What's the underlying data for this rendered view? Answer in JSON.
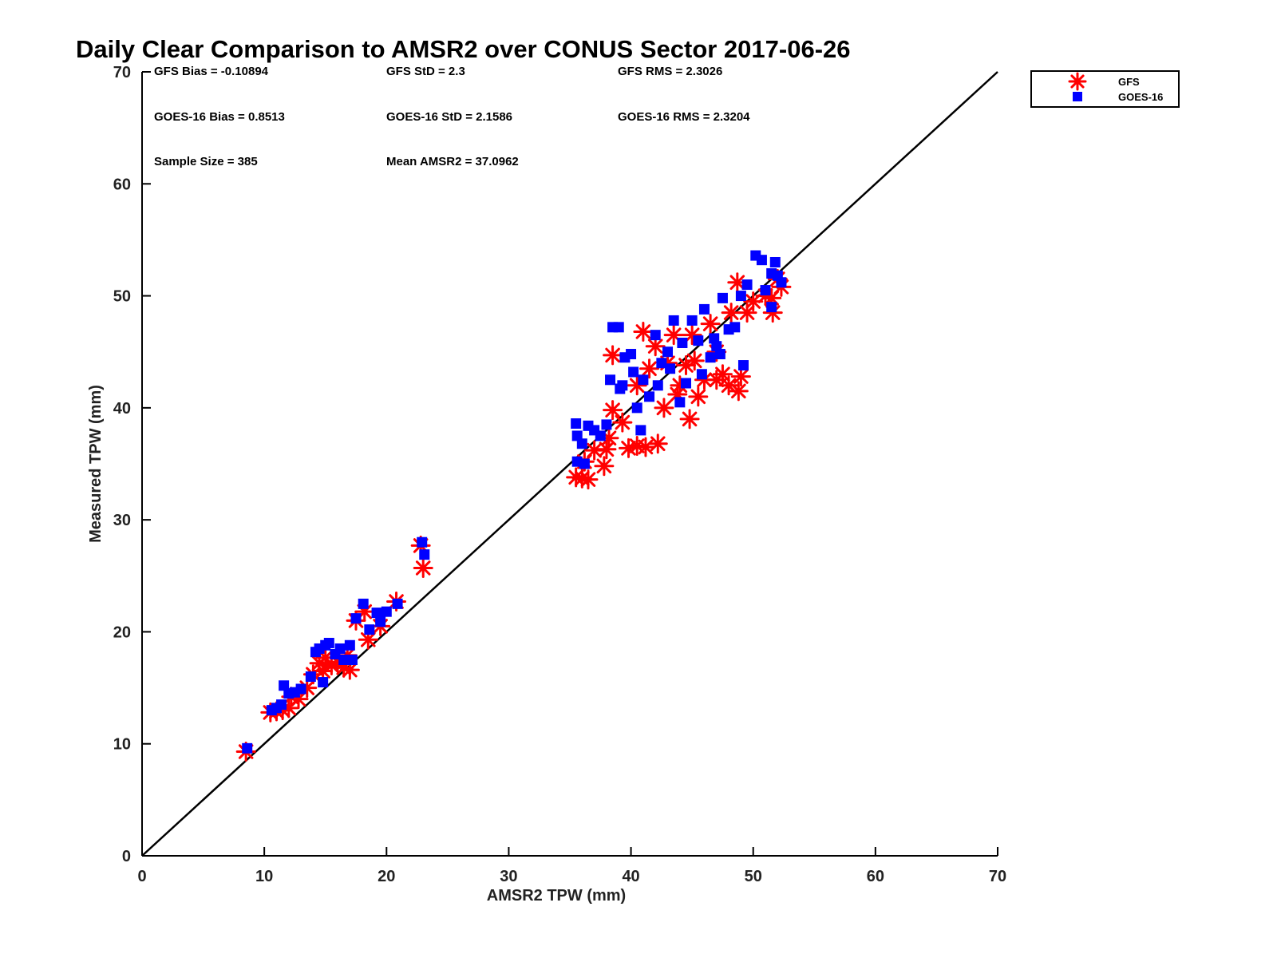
{
  "chart_data": {
    "type": "scatter",
    "title": "Daily Clear Comparison to AMSR2 over CONUS Sector 2017-06-26",
    "xlabel": "AMSR2 TPW (mm)",
    "ylabel": "Measured TPW (mm)",
    "xlim": [
      0,
      70
    ],
    "ylim": [
      0,
      70
    ],
    "xticks": [
      "0",
      "10",
      "20",
      "30",
      "40",
      "50",
      "60",
      "70"
    ],
    "yticks": [
      "0",
      "10",
      "20",
      "30",
      "40",
      "50",
      "60",
      "70"
    ],
    "grid": false,
    "legend_position": "top-right",
    "reference_line": "1:1 diagonal",
    "stats": {
      "gfs_bias": "GFS Bias = -0.10894",
      "gfs_std": "GFS StD = 2.3",
      "gfs_rms": "GFS RMS = 2.3026",
      "goes_bias": "GOES-16 Bias = 0.8513",
      "goes_std": "GOES-16 StD = 2.1586",
      "goes_rms": "GOES-16 RMS = 2.3204",
      "sample_size": "Sample Size = 385",
      "mean_amsr2": "Mean AMSR2 = 37.0962"
    },
    "series": [
      {
        "name": "GFS",
        "color": "#ff0000",
        "marker": "asterisk",
        "points": [
          [
            8.5,
            9.3
          ],
          [
            10.5,
            12.8
          ],
          [
            11.0,
            12.9
          ],
          [
            11.5,
            13.0
          ],
          [
            12.0,
            13.2
          ],
          [
            12.2,
            14.2
          ],
          [
            12.8,
            14.0
          ],
          [
            13.5,
            15.0
          ],
          [
            14.0,
            16.2
          ],
          [
            14.5,
            17.2
          ],
          [
            14.8,
            16.5
          ],
          [
            15.0,
            17.7
          ],
          [
            15.5,
            17.0
          ],
          [
            16.0,
            17.3
          ],
          [
            16.5,
            16.8
          ],
          [
            17.0,
            16.6
          ],
          [
            16.8,
            17.9
          ],
          [
            17.5,
            21.0
          ],
          [
            18.2,
            21.8
          ],
          [
            18.5,
            19.3
          ],
          [
            19.5,
            20.5
          ],
          [
            20.8,
            22.7
          ],
          [
            22.8,
            27.7
          ],
          [
            23.0,
            25.7
          ],
          [
            35.5,
            33.8
          ],
          [
            36.0,
            33.7
          ],
          [
            36.2,
            35.2
          ],
          [
            36.5,
            33.6
          ],
          [
            37.8,
            34.8
          ],
          [
            37.0,
            36.2
          ],
          [
            38.0,
            36.3
          ],
          [
            38.2,
            37.3
          ],
          [
            38.5,
            39.8
          ],
          [
            39.3,
            38.7
          ],
          [
            39.8,
            36.4
          ],
          [
            40.5,
            36.6
          ],
          [
            41.2,
            36.5
          ],
          [
            42.2,
            36.8
          ],
          [
            38.5,
            44.7
          ],
          [
            41.0,
            46.8
          ],
          [
            42.0,
            45.5
          ],
          [
            43.0,
            44.0
          ],
          [
            43.5,
            46.5
          ],
          [
            44.0,
            42.0
          ],
          [
            44.8,
            39.0
          ],
          [
            45.5,
            41.0
          ],
          [
            46.0,
            42.5
          ],
          [
            47.0,
            42.5
          ],
          [
            47.5,
            43.0
          ],
          [
            48.0,
            42.0
          ],
          [
            48.8,
            41.5
          ],
          [
            49.0,
            42.8
          ],
          [
            45.0,
            46.5
          ],
          [
            46.5,
            47.5
          ],
          [
            47.0,
            45.0
          ],
          [
            48.2,
            48.5
          ],
          [
            49.5,
            48.5
          ],
          [
            50.0,
            49.5
          ],
          [
            51.0,
            50.0
          ],
          [
            51.5,
            49.8
          ],
          [
            51.6,
            48.5
          ],
          [
            52.0,
            51.5
          ],
          [
            52.3,
            50.8
          ],
          [
            48.7,
            51.2
          ],
          [
            40.5,
            42.0
          ],
          [
            41.5,
            43.5
          ],
          [
            43.8,
            41.2
          ],
          [
            45.2,
            44.2
          ],
          [
            42.7,
            40.0
          ],
          [
            44.5,
            43.8
          ]
        ]
      },
      {
        "name": "GOES-16",
        "color": "#0000ff",
        "marker": "square",
        "points": [
          [
            8.6,
            9.6
          ],
          [
            10.6,
            13.0
          ],
          [
            11.0,
            13.2
          ],
          [
            11.4,
            13.5
          ],
          [
            11.6,
            15.2
          ],
          [
            12.0,
            14.5
          ],
          [
            12.5,
            14.6
          ],
          [
            13.0,
            14.9
          ],
          [
            13.8,
            16.0
          ],
          [
            14.2,
            18.2
          ],
          [
            14.5,
            18.5
          ],
          [
            14.8,
            15.5
          ],
          [
            15.0,
            18.8
          ],
          [
            15.3,
            19.0
          ],
          [
            15.8,
            18.0
          ],
          [
            16.2,
            18.5
          ],
          [
            16.5,
            17.5
          ],
          [
            17.0,
            18.8
          ],
          [
            17.2,
            17.5
          ],
          [
            17.5,
            21.2
          ],
          [
            18.1,
            22.5
          ],
          [
            18.6,
            20.2
          ],
          [
            19.2,
            21.7
          ],
          [
            19.5,
            20.9
          ],
          [
            20.0,
            21.8
          ],
          [
            20.9,
            22.5
          ],
          [
            22.9,
            28.0
          ],
          [
            23.1,
            26.9
          ],
          [
            35.5,
            38.6
          ],
          [
            35.6,
            37.5
          ],
          [
            35.6,
            35.2
          ],
          [
            36.0,
            36.8
          ],
          [
            36.2,
            35.0
          ],
          [
            36.5,
            38.4
          ],
          [
            37.0,
            38.0
          ],
          [
            37.5,
            37.5
          ],
          [
            38.0,
            38.5
          ],
          [
            38.3,
            42.5
          ],
          [
            38.5,
            47.2
          ],
          [
            39.0,
            47.2
          ],
          [
            39.3,
            42.0
          ],
          [
            39.5,
            44.5
          ],
          [
            40.0,
            44.8
          ],
          [
            40.5,
            40.0
          ],
          [
            40.8,
            38.0
          ],
          [
            41.0,
            42.5
          ],
          [
            41.5,
            41.0
          ],
          [
            42.0,
            46.5
          ],
          [
            42.5,
            44.0
          ],
          [
            43.0,
            45.0
          ],
          [
            43.5,
            47.8
          ],
          [
            44.0,
            40.5
          ],
          [
            44.5,
            42.2
          ],
          [
            45.0,
            47.8
          ],
          [
            45.5,
            46.0
          ],
          [
            46.0,
            48.8
          ],
          [
            46.5,
            44.5
          ],
          [
            47.0,
            45.5
          ],
          [
            47.5,
            49.8
          ],
          [
            48.0,
            47.0
          ],
          [
            48.5,
            47.2
          ],
          [
            49.0,
            50.0
          ],
          [
            49.2,
            43.8
          ],
          [
            49.5,
            51.0
          ],
          [
            50.2,
            53.6
          ],
          [
            50.7,
            53.2
          ],
          [
            51.0,
            50.5
          ],
          [
            51.5,
            52.0
          ],
          [
            51.8,
            53.0
          ],
          [
            52.0,
            51.8
          ],
          [
            52.3,
            51.2
          ],
          [
            51.5,
            49.0
          ],
          [
            43.2,
            43.5
          ],
          [
            44.2,
            45.8
          ],
          [
            45.8,
            43.0
          ],
          [
            47.3,
            44.8
          ],
          [
            42.2,
            42.0
          ],
          [
            40.2,
            43.2
          ],
          [
            39.1,
            41.7
          ],
          [
            46.8,
            46.2
          ]
        ]
      }
    ]
  }
}
